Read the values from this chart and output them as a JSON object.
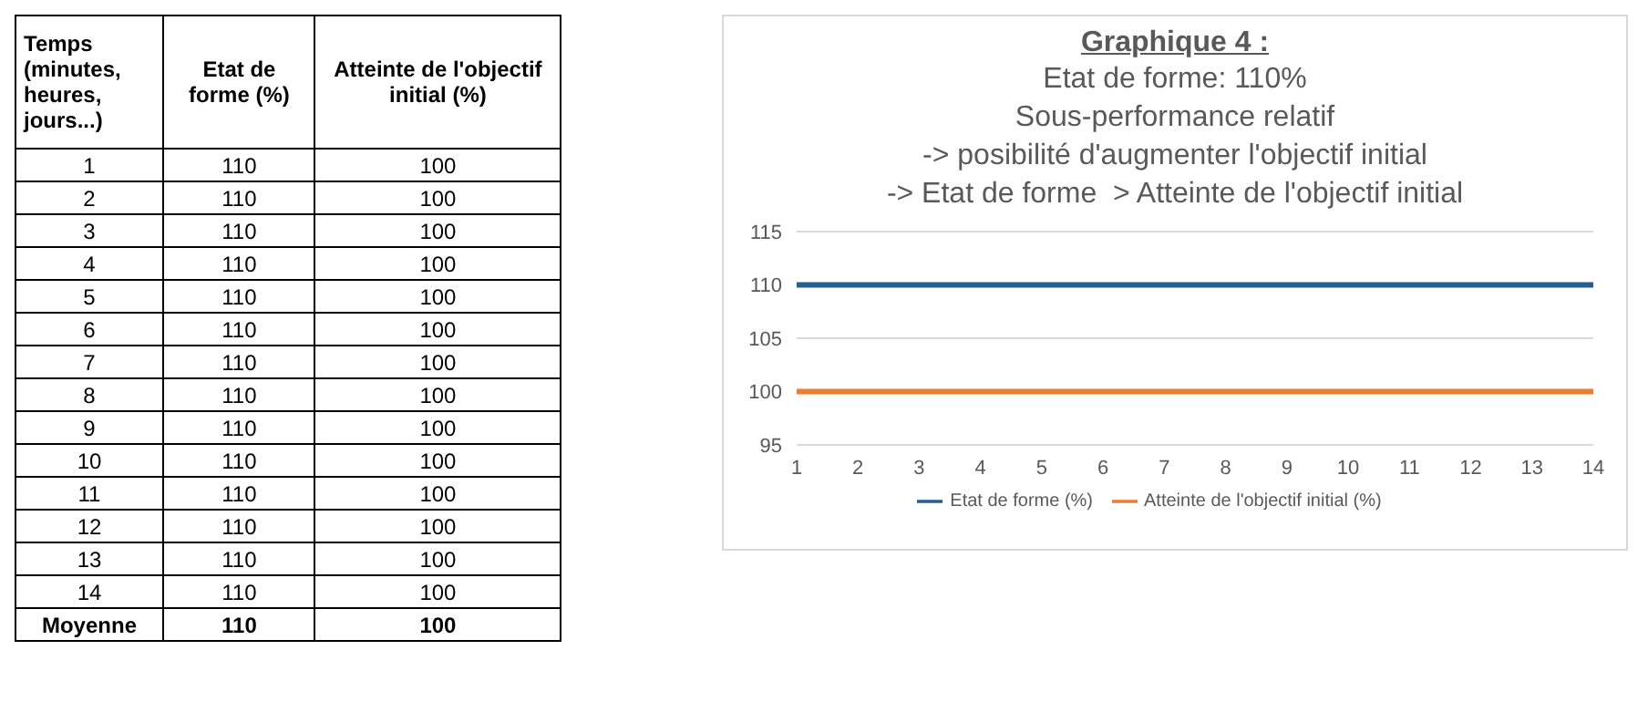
{
  "chart_data": {
    "type": "line",
    "title": "Graphique 4 :",
    "subtitle": "Etat de forme: 110%\nSous-performance relatif\n-> posibilité d'augmenter l'objectif initial\n-> Etat de forme  > Atteinte de l'objectif initial",
    "categories": [
      "1",
      "2",
      "3",
      "4",
      "5",
      "6",
      "7",
      "8",
      "9",
      "10",
      "11",
      "12",
      "13",
      "14"
    ],
    "series": [
      {
        "name": "Etat de forme (%)",
        "color": "#255e91",
        "values": [
          110,
          110,
          110,
          110,
          110,
          110,
          110,
          110,
          110,
          110,
          110,
          110,
          110,
          110
        ]
      },
      {
        "name": "Atteinte de l'objectif initial (%)",
        "color": "#ed7d31",
        "values": [
          100,
          100,
          100,
          100,
          100,
          100,
          100,
          100,
          100,
          100,
          100,
          100,
          100,
          100
        ]
      }
    ],
    "ylim": [
      95,
      115
    ],
    "yticks": [
      95,
      100,
      105,
      110,
      115
    ],
    "grid": "y",
    "legend": "bottom",
    "marker": "none",
    "line_style": "solid",
    "annotations": [
      "Temps (minutes, heures, jours...)",
      "Moyenne",
      "110",
      "100"
    ]
  }
}
